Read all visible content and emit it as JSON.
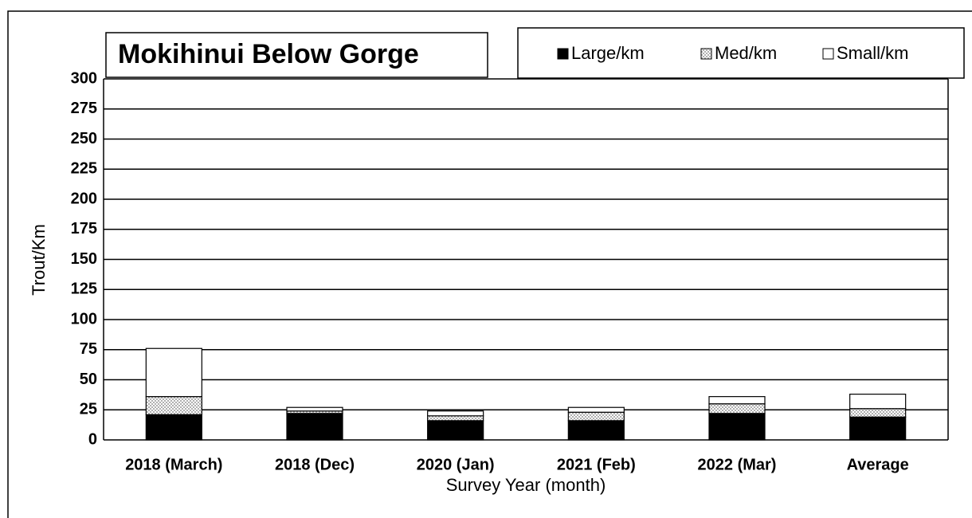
{
  "chart_data": {
    "type": "bar",
    "stacked": true,
    "title": "Mokihinui Below Gorge",
    "x_label": "Survey Year (month)",
    "y_label": "Trout/Km",
    "categories": [
      "2018 (March)",
      "2018 (Dec)",
      "2020 (Jan)",
      "2021 (Feb)",
      "2022 (Mar)",
      "Average"
    ],
    "series": [
      {
        "name": "Large/km",
        "color": "#000000",
        "values": [
          21,
          22,
          16,
          16,
          22,
          19
        ]
      },
      {
        "name": "Med/km",
        "color": "#b0b0b0",
        "pattern": "dotted",
        "values": [
          15,
          2,
          4,
          7,
          8,
          7
        ]
      },
      {
        "name": "Small/km",
        "color": "#ffffff",
        "values": [
          40,
          3,
          4,
          4,
          6,
          12
        ]
      }
    ],
    "ylim": [
      0,
      300
    ],
    "yticks": [
      0,
      25,
      50,
      75,
      100,
      125,
      150,
      175,
      200,
      225,
      250,
      275,
      300
    ],
    "grid": true,
    "legend": "top-right"
  }
}
